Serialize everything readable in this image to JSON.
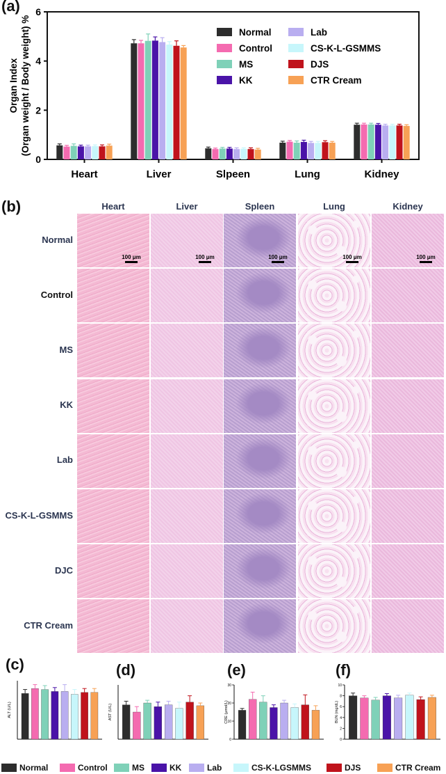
{
  "panels": {
    "a": "(a)",
    "b": "(b)",
    "c": "(c)",
    "d": "(d)",
    "e": "(e)",
    "f": "(f)"
  },
  "colors": {
    "Normal": "#2d2d2d",
    "Control": "#f46bb0",
    "MS": "#7fd1b8",
    "KK": "#4a13a8",
    "Lab": "#b9aef0",
    "CS-K-L-GSMMS": "#c7f6fb",
    "DJS": "#c0131c",
    "CTR Cream": "#f7a155"
  },
  "chart_data": [
    {
      "id": "a",
      "type": "bar",
      "ylabel": "Organ Index\n(Organ weight / Body weight) %",
      "ylim": [
        0,
        6
      ],
      "yticks": [
        0,
        2,
        4,
        6
      ],
      "categories": [
        "Heart",
        "Liver",
        "Slpeen",
        "Lung",
        "Kidney"
      ],
      "legend": [
        "Normal",
        "Control",
        "MS",
        "KK",
        "Lab",
        "CS-K-L-GSMMS",
        "DJS",
        "CTR Cream"
      ],
      "series": [
        {
          "name": "Normal",
          "values": [
            0.57,
            4.72,
            0.45,
            0.68,
            1.41
          ],
          "err": [
            0.06,
            0.15,
            0.05,
            0.06,
            0.06
          ]
        },
        {
          "name": "Control",
          "values": [
            0.52,
            4.72,
            0.42,
            0.72,
            1.42
          ],
          "err": [
            0.05,
            0.12,
            0.04,
            0.05,
            0.05
          ]
        },
        {
          "name": "MS",
          "values": [
            0.55,
            4.82,
            0.44,
            0.68,
            1.42
          ],
          "err": [
            0.08,
            0.28,
            0.05,
            0.07,
            0.05
          ]
        },
        {
          "name": "KK",
          "values": [
            0.53,
            4.83,
            0.44,
            0.71,
            1.41
          ],
          "err": [
            0.05,
            0.15,
            0.05,
            0.07,
            0.05
          ]
        },
        {
          "name": "Lab",
          "values": [
            0.53,
            4.77,
            0.42,
            0.67,
            1.38
          ],
          "err": [
            0.05,
            0.18,
            0.05,
            0.06,
            0.05
          ]
        },
        {
          "name": "CS-K-L-GSMMS",
          "values": [
            0.54,
            4.67,
            0.43,
            0.67,
            1.38
          ],
          "err": [
            0.05,
            0.12,
            0.04,
            0.06,
            0.05
          ]
        },
        {
          "name": "DJS",
          "values": [
            0.53,
            4.62,
            0.42,
            0.7,
            1.38
          ],
          "err": [
            0.06,
            0.2,
            0.05,
            0.06,
            0.05
          ]
        },
        {
          "name": "CTR Cream",
          "values": [
            0.56,
            4.55,
            0.4,
            0.68,
            1.36
          ],
          "err": [
            0.06,
            0.08,
            0.05,
            0.05,
            0.05
          ]
        }
      ]
    },
    {
      "id": "c",
      "type": "bar",
      "ylabel": "ALT (U/L)",
      "ylim": [
        0,
        30
      ],
      "series_order": [
        "Normal",
        "Control",
        "MS",
        "KK",
        "Lab",
        "CS-K-L-GSMMS",
        "DJS",
        "CTR Cream"
      ],
      "values": [
        23.5,
        26.0,
        25.5,
        24.5,
        24.5,
        23.0,
        24.0,
        24.0
      ],
      "err": [
        2.0,
        2.0,
        2.0,
        2.0,
        3.5,
        2.5,
        2.0,
        2.0
      ]
    },
    {
      "id": "d",
      "type": "bar",
      "ylabel": "AST (U/L)",
      "ylim": [
        0,
        30
      ],
      "series_order": [
        "Normal",
        "Control",
        "MS",
        "KK",
        "Lab",
        "CS-K-L-GSMMS",
        "DJS",
        "CTR Cream"
      ],
      "values": [
        19.0,
        15.0,
        20.0,
        18.0,
        19.0,
        17.0,
        20.5,
        18.5
      ],
      "err": [
        2.0,
        3.0,
        1.5,
        2.5,
        2.0,
        3.5,
        3.5,
        1.5
      ]
    },
    {
      "id": "e",
      "type": "bar",
      "ylabel": "CRE (μmol/L)",
      "ylim": [
        0,
        30
      ],
      "yticks": [
        0,
        10,
        20,
        30
      ],
      "series_order": [
        "Normal",
        "Control",
        "MS",
        "KK",
        "Lab",
        "CS-K-L-GSMMS",
        "DJS",
        "CTR Cream"
      ],
      "values": [
        16.0,
        22.0,
        20.5,
        17.5,
        20.0,
        17.5,
        19.0,
        16.0
      ],
      "err": [
        1.0,
        4.0,
        3.5,
        1.5,
        1.5,
        2.0,
        5.5,
        2.5
      ]
    },
    {
      "id": "f",
      "type": "bar",
      "ylabel": "BUN (mg/dL)",
      "ylim": [
        0,
        10
      ],
      "yticks": [
        0,
        2,
        4,
        6,
        8,
        10
      ],
      "series_order": [
        "Normal",
        "Control",
        "MS",
        "KK",
        "Lab",
        "CS-K-L-GSMMS",
        "DJS",
        "CTR Cream"
      ],
      "values": [
        8.0,
        7.6,
        7.2,
        8.0,
        7.6,
        8.1,
        7.3,
        7.7
      ],
      "err": [
        0.5,
        0.4,
        0.5,
        0.4,
        0.5,
        0.4,
        0.5,
        0.4
      ]
    }
  ],
  "histology": {
    "columns": [
      "Heart",
      "Liver",
      "Spleen",
      "Lung",
      "Kidney"
    ],
    "rows": [
      "Normal",
      "Control",
      "MS",
      "KK",
      "Lab",
      "CS-K-L-GSMMS",
      "DJC",
      "CTR Cream"
    ],
    "scale_bar": "100 μm"
  },
  "bottom_legend": [
    "Normal",
    "Control",
    "MS",
    "KK",
    "Lab",
    "CS-K-LGSMMS",
    "DJS",
    "CTR Cream"
  ]
}
